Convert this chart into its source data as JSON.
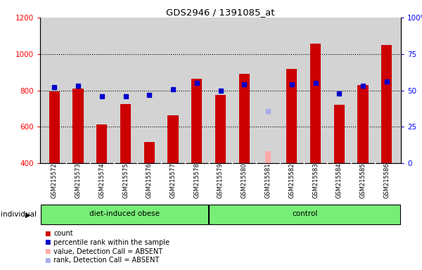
{
  "title": "GDS2946 / 1391085_at",
  "samples": [
    "GSM215572",
    "GSM215573",
    "GSM215574",
    "GSM215575",
    "GSM215576",
    "GSM215577",
    "GSM215578",
    "GSM215579",
    "GSM215580",
    "GSM215581",
    "GSM215582",
    "GSM215583",
    "GSM215584",
    "GSM215585",
    "GSM215586"
  ],
  "count_values": [
    795,
    810,
    612,
    725,
    517,
    663,
    866,
    775,
    890,
    null,
    918,
    1057,
    720,
    830,
    1048
  ],
  "count_absent": [
    false,
    false,
    false,
    false,
    false,
    false,
    false,
    false,
    false,
    true,
    false,
    false,
    false,
    false,
    false
  ],
  "count_absent_values": [
    null,
    null,
    null,
    null,
    null,
    null,
    null,
    null,
    null,
    465,
    null,
    null,
    null,
    null,
    null
  ],
  "rank_values": [
    52,
    53,
    46,
    46,
    47,
    51,
    55,
    50,
    54,
    null,
    54,
    55,
    48,
    53,
    56
  ],
  "rank_absent": [
    false,
    false,
    false,
    false,
    false,
    false,
    false,
    false,
    false,
    true,
    false,
    false,
    false,
    false,
    false
  ],
  "rank_absent_values": [
    null,
    null,
    null,
    null,
    null,
    null,
    null,
    null,
    null,
    36,
    null,
    null,
    null,
    null,
    null
  ],
  "n_obese": 7,
  "n_control": 8,
  "ylim_left": [
    400,
    1200
  ],
  "ylim_right": [
    0,
    100
  ],
  "yticks_left": [
    400,
    600,
    800,
    1000,
    1200
  ],
  "yticks_right": [
    0,
    25,
    50,
    75,
    100
  ],
  "bar_color": "#cc0000",
  "bar_absent_color": "#ffaaaa",
  "rank_color": "#0000cc",
  "rank_absent_color": "#aaaaee",
  "bg_color": "#d3d3d3",
  "green_color": "#77ee77",
  "legend_items": [
    "count",
    "percentile rank within the sample",
    "value, Detection Call = ABSENT",
    "rank, Detection Call = ABSENT"
  ],
  "legend_colors": [
    "#cc0000",
    "#0000cc",
    "#ffaaaa",
    "#aaaaee"
  ]
}
